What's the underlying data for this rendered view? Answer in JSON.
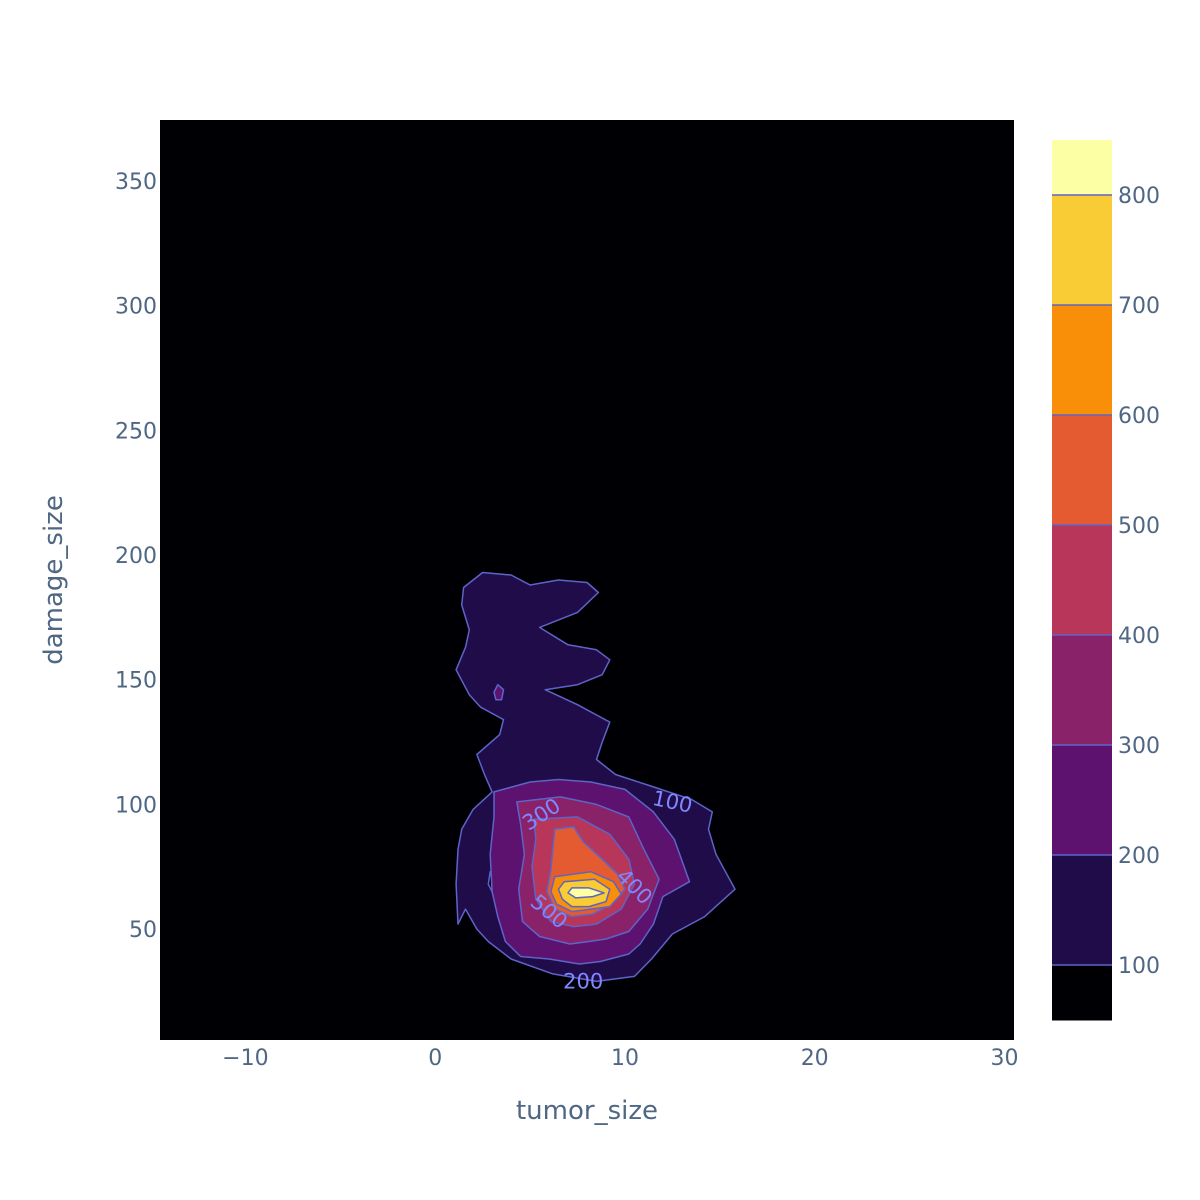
{
  "chart_data": {
    "type": "contour",
    "xlabel": "tumor_size",
    "ylabel": "damage_size",
    "xlim": [
      -14.5,
      30.5
    ],
    "ylim": [
      5.5,
      374.5
    ],
    "x_ticks": [
      {
        "value": -10,
        "label": "−10"
      },
      {
        "value": 0,
        "label": "0"
      },
      {
        "value": 10,
        "label": "10"
      },
      {
        "value": 20,
        "label": "20"
      },
      {
        "value": 30,
        "label": "30"
      }
    ],
    "y_ticks": [
      {
        "value": 50,
        "label": "50"
      },
      {
        "value": 100,
        "label": "100"
      },
      {
        "value": 150,
        "label": "150"
      },
      {
        "value": 200,
        "label": "200"
      },
      {
        "value": 250,
        "label": "250"
      },
      {
        "value": 300,
        "label": "300"
      },
      {
        "value": 350,
        "label": "350"
      }
    ],
    "colorscale": {
      "name": "inferno",
      "zrange": [
        50,
        850
      ],
      "bands": [
        {
          "from": 50,
          "to": 100,
          "color": "#000004"
        },
        {
          "from": 100,
          "to": 200,
          "color": "#210c4a"
        },
        {
          "from": 200,
          "to": 300,
          "color": "#5c126e"
        },
        {
          "from": 300,
          "to": 400,
          "color": "#8a226a"
        },
        {
          "from": 400,
          "to": 500,
          "color": "#b8365a"
        },
        {
          "from": 500,
          "to": 600,
          "color": "#e45a31"
        },
        {
          "from": 600,
          "to": 700,
          "color": "#f98e09"
        },
        {
          "from": 700,
          "to": 800,
          "color": "#f9cb35"
        },
        {
          "from": 800,
          "to": 850,
          "color": "#fcffa4"
        }
      ],
      "ticks": [
        {
          "value": 100,
          "label": "100"
        },
        {
          "value": 200,
          "label": "200"
        },
        {
          "value": 300,
          "label": "300"
        },
        {
          "value": 400,
          "label": "400"
        },
        {
          "value": 500,
          "label": "500"
        },
        {
          "value": 600,
          "label": "600"
        },
        {
          "value": 700,
          "label": "700"
        },
        {
          "value": 800,
          "label": "800"
        }
      ]
    },
    "background_color": "#000004",
    "line_color": "#5c64c8",
    "contours": [
      {
        "level": 100,
        "color": "#210c4a",
        "points": [
          [
            1.5,
            187
          ],
          [
            2.5,
            193
          ],
          [
            4,
            192
          ],
          [
            5,
            188
          ],
          [
            6.5,
            190
          ],
          [
            8,
            189
          ],
          [
            8.6,
            185
          ],
          [
            7.5,
            177
          ],
          [
            5.5,
            171
          ],
          [
            7,
            164
          ],
          [
            8.5,
            162
          ],
          [
            9.2,
            158
          ],
          [
            8.8,
            152
          ],
          [
            7.5,
            148
          ],
          [
            5.8,
            146
          ],
          [
            7.5,
            140
          ],
          [
            9.2,
            133
          ],
          [
            8.8,
            125
          ],
          [
            8.5,
            118
          ],
          [
            9.5,
            112
          ],
          [
            11.5,
            107
          ],
          [
            13.5,
            102
          ],
          [
            14.6,
            97
          ],
          [
            14.4,
            90
          ],
          [
            14.8,
            80
          ],
          [
            15.8,
            66
          ],
          [
            14.2,
            55
          ],
          [
            12.5,
            48
          ],
          [
            11.4,
            38
          ],
          [
            10.5,
            31
          ],
          [
            8.5,
            29
          ],
          [
            6.2,
            32
          ],
          [
            4,
            38
          ],
          [
            2.8,
            45
          ],
          [
            2.2,
            50
          ],
          [
            1.6,
            58
          ],
          [
            1.2,
            52
          ],
          [
            1.1,
            68
          ],
          [
            1.2,
            82
          ],
          [
            1.4,
            90
          ],
          [
            2,
            98
          ],
          [
            3,
            105
          ],
          [
            2.6,
            112
          ],
          [
            2.2,
            120
          ],
          [
            3.4,
            128
          ],
          [
            3.6,
            134
          ],
          [
            2.4,
            139
          ],
          [
            1.8,
            144
          ],
          [
            1.1,
            154
          ],
          [
            1.6,
            163
          ],
          [
            1.8,
            170
          ],
          [
            1.4,
            180
          ]
        ]
      },
      {
        "level": 100,
        "color": "#000004",
        "points": [
          [
            2.9,
            73
          ],
          [
            3.5,
            67
          ],
          [
            3.6,
            60
          ],
          [
            3.2,
            62
          ],
          [
            2.8,
            68
          ]
        ]
      },
      {
        "level": 200,
        "color": "#5c126e",
        "points": [
          [
            3.1,
            105
          ],
          [
            5,
            109
          ],
          [
            6.5,
            110
          ],
          [
            8.2,
            109
          ],
          [
            10,
            106
          ],
          [
            11.5,
            97
          ],
          [
            12.6,
            86
          ],
          [
            13.4,
            69
          ],
          [
            12,
            63
          ],
          [
            11.5,
            52
          ],
          [
            10.8,
            44
          ],
          [
            10.2,
            40
          ],
          [
            8.7,
            37
          ],
          [
            7.6,
            36
          ],
          [
            6,
            38
          ],
          [
            4.5,
            39
          ],
          [
            3.7,
            45
          ],
          [
            3.3,
            55
          ],
          [
            3,
            65
          ],
          [
            2.9,
            80
          ],
          [
            3.1,
            95
          ]
        ]
      },
      {
        "level": 200,
        "color": "#5c126e",
        "points": [
          [
            3.3,
            148
          ],
          [
            3.6,
            146
          ],
          [
            3.5,
            142
          ],
          [
            3.2,
            142
          ],
          [
            3.1,
            145
          ]
        ]
      },
      {
        "level": 300,
        "color": "#8a226a",
        "points": [
          [
            4.3,
            101
          ],
          [
            6.6,
            103
          ],
          [
            8.5,
            100
          ],
          [
            10.2,
            95
          ],
          [
            11,
            82
          ],
          [
            11.8,
            70
          ],
          [
            11.2,
            58
          ],
          [
            10.2,
            49
          ],
          [
            9,
            46
          ],
          [
            8.1,
            45
          ],
          [
            7.1,
            44
          ],
          [
            5.5,
            47
          ],
          [
            4.6,
            53
          ],
          [
            4.4,
            66
          ],
          [
            4.7,
            80
          ],
          [
            4.5,
            92
          ]
        ]
      },
      {
        "level": 400,
        "color": "#b8365a",
        "points": [
          [
            5.2,
            94
          ],
          [
            7.5,
            95
          ],
          [
            9.2,
            88
          ],
          [
            10.2,
            78
          ],
          [
            10.5,
            68
          ],
          [
            9.8,
            58
          ],
          [
            8.5,
            52
          ],
          [
            7.3,
            51
          ],
          [
            6.1,
            53
          ],
          [
            5.3,
            62
          ],
          [
            5.1,
            75
          ],
          [
            5.3,
            86
          ]
        ]
      },
      {
        "level": 500,
        "color": "#e45a31",
        "points": [
          [
            6.3,
            90
          ],
          [
            7.3,
            91
          ],
          [
            7.8,
            85
          ],
          [
            8.8,
            78
          ],
          [
            9.6,
            72
          ],
          [
            10,
            66
          ],
          [
            9.3,
            60
          ],
          [
            8.3,
            56
          ],
          [
            7.2,
            55
          ],
          [
            6.3,
            58
          ],
          [
            5.9,
            65
          ],
          [
            6.1,
            74
          ],
          [
            6.2,
            82
          ]
        ]
      },
      {
        "level": 600,
        "color": "#f98e09",
        "points": [
          [
            6.3,
            71
          ],
          [
            8.2,
            73
          ],
          [
            9.4,
            69
          ],
          [
            9.8,
            64
          ],
          [
            9.2,
            59
          ],
          [
            8.2,
            58
          ],
          [
            7.2,
            57
          ],
          [
            6.4,
            60
          ],
          [
            6.1,
            65
          ]
        ]
      },
      {
        "level": 700,
        "color": "#f9cb35",
        "points": [
          [
            6.8,
            69
          ],
          [
            8.4,
            70
          ],
          [
            9.2,
            66
          ],
          [
            9,
            61
          ],
          [
            8.1,
            59
          ],
          [
            7.2,
            59
          ],
          [
            6.7,
            62
          ],
          [
            6.5,
            66
          ]
        ]
      },
      {
        "level": 800,
        "color": "#fcffa4",
        "points": [
          [
            7.2,
            66.5
          ],
          [
            8.1,
            66.5
          ],
          [
            8.9,
            64.5
          ],
          [
            8.3,
            63
          ],
          [
            7.4,
            62.5
          ],
          [
            7,
            64.5
          ]
        ]
      }
    ],
    "contour_labels": [
      {
        "text": "100",
        "x": 12.5,
        "y": 101,
        "angle": 12
      },
      {
        "text": "300",
        "x": 5.6,
        "y": 96,
        "angle": -33
      },
      {
        "text": "400",
        "x": 10.5,
        "y": 67,
        "angle": 45
      },
      {
        "text": "500",
        "x": 6.0,
        "y": 57,
        "angle": 40
      },
      {
        "text": "200",
        "x": 7.8,
        "y": 29,
        "angle": 0
      }
    ]
  }
}
